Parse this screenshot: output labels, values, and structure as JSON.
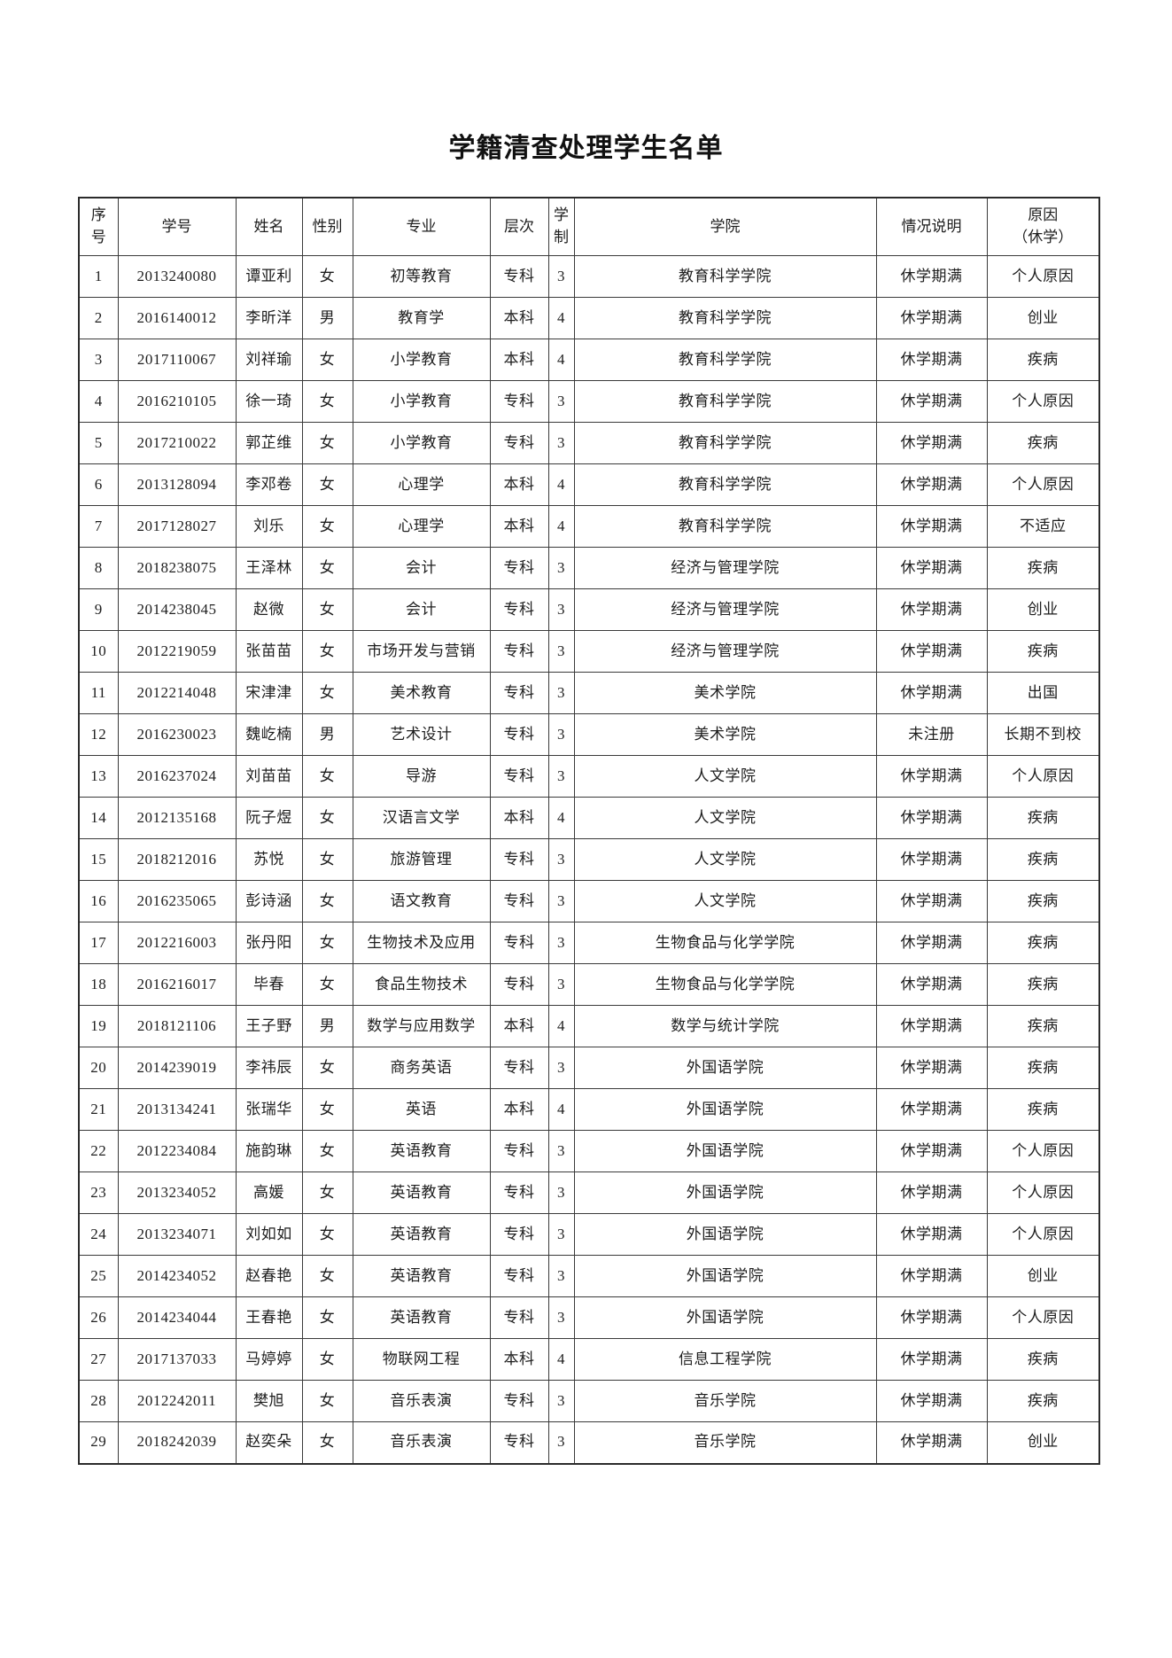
{
  "page": {
    "title": "学籍清查处理学生名单"
  },
  "table": {
    "headers": [
      "序\n号",
      "学号",
      "姓名",
      "性别",
      "专业",
      "层次",
      "学\n制",
      "学院",
      "情况说明",
      "原因\n（休学）"
    ],
    "rows": [
      [
        "1",
        "2013240080",
        "谭亚利",
        "女",
        "初等教育",
        "专科",
        "3",
        "教育科学学院",
        "休学期满",
        "个人原因"
      ],
      [
        "2",
        "2016140012",
        "李昕洋",
        "男",
        "教育学",
        "本科",
        "4",
        "教育科学学院",
        "休学期满",
        "创业"
      ],
      [
        "3",
        "2017110067",
        "刘祥瑜",
        "女",
        "小学教育",
        "本科",
        "4",
        "教育科学学院",
        "休学期满",
        "疾病"
      ],
      [
        "4",
        "2016210105",
        "徐一琦",
        "女",
        "小学教育",
        "专科",
        "3",
        "教育科学学院",
        "休学期满",
        "个人原因"
      ],
      [
        "5",
        "2017210022",
        "郭芷维",
        "女",
        "小学教育",
        "专科",
        "3",
        "教育科学学院",
        "休学期满",
        "疾病"
      ],
      [
        "6",
        "2013128094",
        "李邓卷",
        "女",
        "心理学",
        "本科",
        "4",
        "教育科学学院",
        "休学期满",
        "个人原因"
      ],
      [
        "7",
        "2017128027",
        "刘乐",
        "女",
        "心理学",
        "本科",
        "4",
        "教育科学学院",
        "休学期满",
        "不适应"
      ],
      [
        "8",
        "2018238075",
        "王泽林",
        "女",
        "会计",
        "专科",
        "3",
        "经济与管理学院",
        "休学期满",
        "疾病"
      ],
      [
        "9",
        "2014238045",
        "赵微",
        "女",
        "会计",
        "专科",
        "3",
        "经济与管理学院",
        "休学期满",
        "创业"
      ],
      [
        "10",
        "2012219059",
        "张苗苗",
        "女",
        "市场开发与营销",
        "专科",
        "3",
        "经济与管理学院",
        "休学期满",
        "疾病"
      ],
      [
        "11",
        "2012214048",
        "宋津津",
        "女",
        "美术教育",
        "专科",
        "3",
        "美术学院",
        "休学期满",
        "出国"
      ],
      [
        "12",
        "2016230023",
        "魏屹楠",
        "男",
        "艺术设计",
        "专科",
        "3",
        "美术学院",
        "未注册",
        "长期不到校"
      ],
      [
        "13",
        "2016237024",
        "刘苗苗",
        "女",
        "导游",
        "专科",
        "3",
        "人文学院",
        "休学期满",
        "个人原因"
      ],
      [
        "14",
        "2012135168",
        "阮子煜",
        "女",
        "汉语言文学",
        "本科",
        "4",
        "人文学院",
        "休学期满",
        "疾病"
      ],
      [
        "15",
        "2018212016",
        "苏悦",
        "女",
        "旅游管理",
        "专科",
        "3",
        "人文学院",
        "休学期满",
        "疾病"
      ],
      [
        "16",
        "2016235065",
        "彭诗涵",
        "女",
        "语文教育",
        "专科",
        "3",
        "人文学院",
        "休学期满",
        "疾病"
      ],
      [
        "17",
        "2012216003",
        "张丹阳",
        "女",
        "生物技术及应用",
        "专科",
        "3",
        "生物食品与化学学院",
        "休学期满",
        "疾病"
      ],
      [
        "18",
        "2016216017",
        "毕春",
        "女",
        "食品生物技术",
        "专科",
        "3",
        "生物食品与化学学院",
        "休学期满",
        "疾病"
      ],
      [
        "19",
        "2018121106",
        "王子野",
        "男",
        "数学与应用数学",
        "本科",
        "4",
        "数学与统计学院",
        "休学期满",
        "疾病"
      ],
      [
        "20",
        "2014239019",
        "李祎辰",
        "女",
        "商务英语",
        "专科",
        "3",
        "外国语学院",
        "休学期满",
        "疾病"
      ],
      [
        "21",
        "2013134241",
        "张瑞华",
        "女",
        "英语",
        "本科",
        "4",
        "外国语学院",
        "休学期满",
        "疾病"
      ],
      [
        "22",
        "2012234084",
        "施韵琳",
        "女",
        "英语教育",
        "专科",
        "3",
        "外国语学院",
        "休学期满",
        "个人原因"
      ],
      [
        "23",
        "2013234052",
        "高媛",
        "女",
        "英语教育",
        "专科",
        "3",
        "外国语学院",
        "休学期满",
        "个人原因"
      ],
      [
        "24",
        "2013234071",
        "刘如如",
        "女",
        "英语教育",
        "专科",
        "3",
        "外国语学院",
        "休学期满",
        "个人原因"
      ],
      [
        "25",
        "2014234052",
        "赵春艳",
        "女",
        "英语教育",
        "专科",
        "3",
        "外国语学院",
        "休学期满",
        "创业"
      ],
      [
        "26",
        "2014234044",
        "王春艳",
        "女",
        "英语教育",
        "专科",
        "3",
        "外国语学院",
        "休学期满",
        "个人原因"
      ],
      [
        "27",
        "2017137033",
        "马婷婷",
        "女",
        "物联网工程",
        "本科",
        "4",
        "信息工程学院",
        "休学期满",
        "疾病"
      ],
      [
        "28",
        "2012242011",
        "樊旭",
        "女",
        "音乐表演",
        "专科",
        "3",
        "音乐学院",
        "休学期满",
        "疾病"
      ],
      [
        "29",
        "2018242039",
        "赵奕朵",
        "女",
        "音乐表演",
        "专科",
        "3",
        "音乐学院",
        "休学期满",
        "创业"
      ]
    ]
  }
}
